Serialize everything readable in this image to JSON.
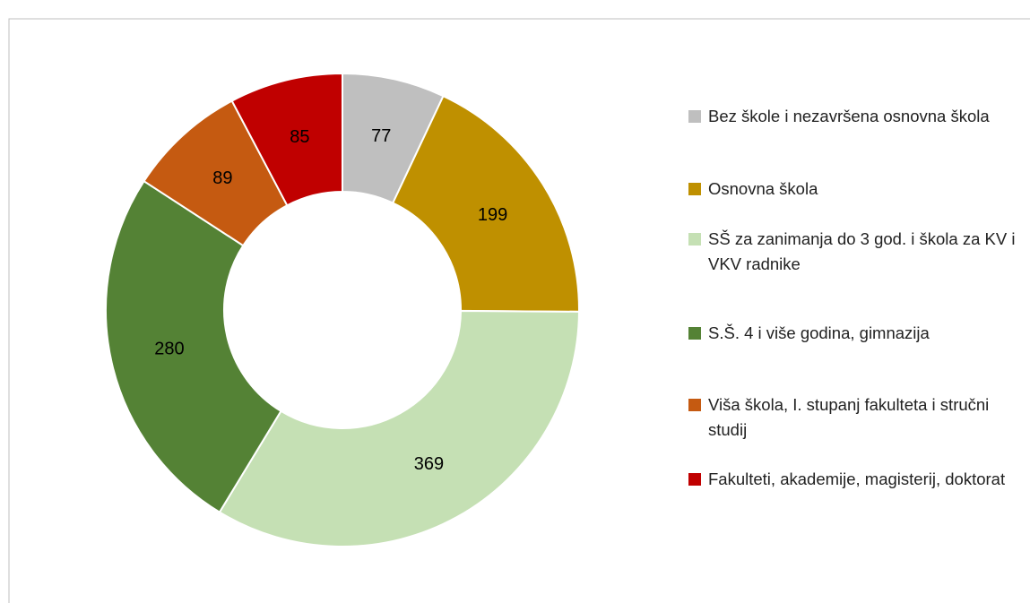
{
  "chart_data": {
    "type": "donut",
    "categories": [
      "Bez škole i nezavršena osnovna škola",
      "Osnovna škola",
      "SŠ za zanimanja do 3 god. i škola za KV i VKV radnike",
      "S.Š. 4 i više godina, gimnazija",
      "Viša škola, I. stupanj fakulteta i stručni studij",
      "Fakulteti, akademije, magisterij, doktorat"
    ],
    "values": [
      77,
      199,
      369,
      280,
      89,
      85
    ],
    "colors": [
      "#bfbfbf",
      "#bf9000",
      "#c5e0b4",
      "#548235",
      "#c55a11",
      "#c00000"
    ],
    "legend": "right"
  }
}
